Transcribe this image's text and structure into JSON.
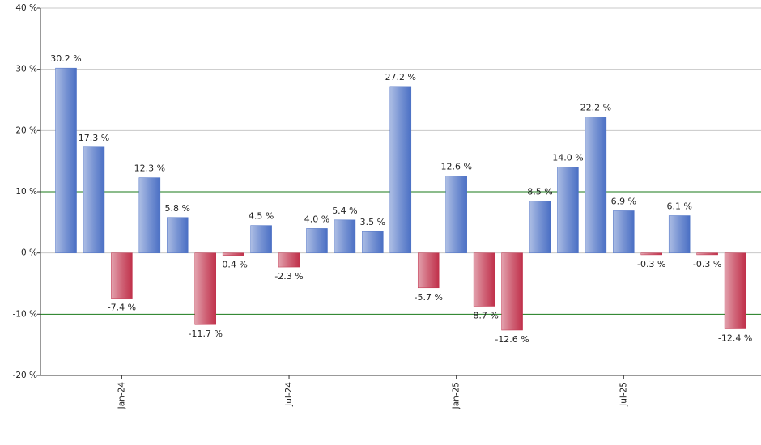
{
  "chart_data": {
    "type": "bar",
    "categories": [
      null,
      null,
      "Jan-24",
      null,
      null,
      null,
      null,
      null,
      "Jul-24",
      null,
      null,
      null,
      null,
      null,
      "Jan-25",
      null,
      null,
      null,
      null,
      null,
      "Jul-25",
      null,
      null,
      null,
      null
    ],
    "values": [
      30.2,
      17.3,
      -7.4,
      12.3,
      5.8,
      -11.7,
      -0.4,
      4.5,
      -2.3,
      4.0,
      5.4,
      3.5,
      27.2,
      -5.7,
      12.6,
      -8.7,
      -12.6,
      8.5,
      14.0,
      22.2,
      6.9,
      -0.3,
      6.1,
      -0.3,
      -12.4
    ],
    "value_labels": [
      "30.2 %",
      "17.3 %",
      "-7.4 %",
      "12.3 %",
      "5.8 %",
      "-11.7 %",
      "-0.4 %",
      "4.5 %",
      "-2.3 %",
      "4.0 %",
      "5.4 %",
      "3.5 %",
      "27.2 %",
      "-5.7 %",
      "12.6 %",
      "-8.7 %",
      "-12.6 %",
      "8.5 %",
      "14.0 %",
      "22.2 %",
      "6.9 %",
      "-0.3 %",
      "6.1 %",
      "-0.3 %",
      "-12.4 %"
    ],
    "colors": {
      "positive": "#4a6fc4",
      "negative": "#c0304a"
    },
    "ylim": [
      -20,
      40
    ],
    "yticks": [
      {
        "value": -20,
        "label": "-20 %"
      },
      {
        "value": -10,
        "label": "-10 %"
      },
      {
        "value": 0,
        "label": "0 %"
      },
      {
        "value": 10,
        "label": "10 %"
      },
      {
        "value": 20,
        "label": "20 %"
      },
      {
        "value": 30,
        "label": "30 %"
      },
      {
        "value": 40,
        "label": "40 %"
      }
    ],
    "grid": true,
    "reference_lines": [
      -10,
      10
    ],
    "reference_color": "#1a7a1a"
  }
}
